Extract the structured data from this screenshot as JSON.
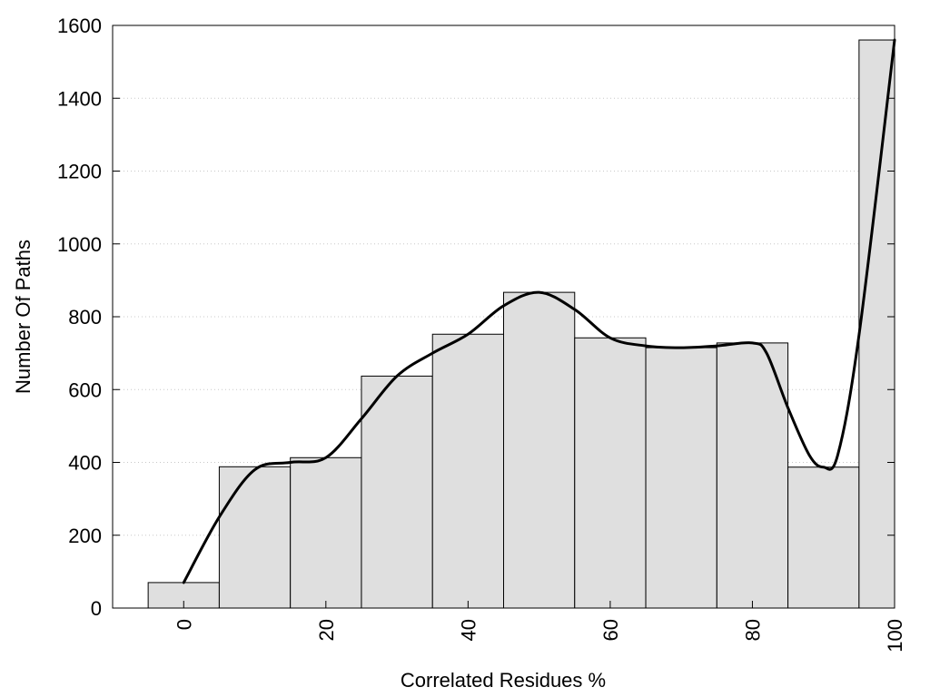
{
  "chart_data": {
    "type": "bar",
    "xlabel": "Correlated Residues %",
    "ylabel": "Number Of Paths",
    "xlim": [
      -10,
      100
    ],
    "ylim": [
      0,
      1600
    ],
    "grid": true,
    "x_ticks": [
      0,
      20,
      40,
      60,
      80,
      100
    ],
    "y_ticks": [
      0,
      200,
      400,
      600,
      800,
      1000,
      1200,
      1400,
      1600
    ],
    "bins": [
      {
        "center": 0,
        "width": 10,
        "value": 70
      },
      {
        "center": 10,
        "width": 10,
        "value": 388
      },
      {
        "center": 20,
        "width": 10,
        "value": 413
      },
      {
        "center": 30,
        "width": 10,
        "value": 637
      },
      {
        "center": 40,
        "width": 10,
        "value": 752
      },
      {
        "center": 50,
        "width": 10,
        "value": 867
      },
      {
        "center": 60,
        "width": 10,
        "value": 742
      },
      {
        "center": 70,
        "width": 10,
        "value": 715
      },
      {
        "center": 80,
        "width": 10,
        "value": 728
      },
      {
        "center": 90,
        "width": 10,
        "value": 387
      },
      {
        "center": 97.5,
        "width": 5,
        "value": 1560
      }
    ],
    "smooth_curve": {
      "x": [
        0,
        5,
        10,
        15,
        20,
        25,
        30,
        35,
        40,
        45,
        50,
        55,
        60,
        65,
        70,
        75,
        80,
        82,
        85,
        88,
        90,
        92,
        95,
        100
      ],
      "y": [
        70,
        250,
        380,
        400,
        413,
        520,
        637,
        700,
        752,
        830,
        867,
        820,
        742,
        720,
        715,
        720,
        728,
        700,
        550,
        420,
        387,
        420,
        750,
        1560
      ]
    }
  }
}
